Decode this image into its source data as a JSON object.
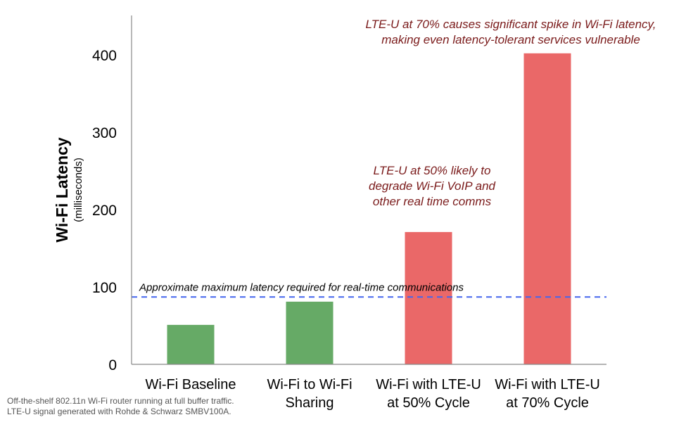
{
  "chart_data": {
    "type": "bar",
    "categories": [
      [
        "Wi-Fi Baseline"
      ],
      [
        "Wi-Fi to Wi-Fi",
        "Sharing"
      ],
      [
        "Wi-Fi with LTE-U",
        "at 50% Cycle"
      ],
      [
        "Wi-Fi with LTE-U",
        "at 70% Cycle"
      ]
    ],
    "values": [
      51,
      81,
      171,
      402
    ],
    "bar_colors": [
      "#66aa66",
      "#66aa66",
      "#ea6868",
      "#ea6868"
    ],
    "ylabel": "Wi-Fi Latency",
    "ylabel_sub": "(milliseconds)",
    "ylim": [
      0,
      450
    ],
    "yticks": [
      0,
      100,
      200,
      300,
      400
    ],
    "threshold": {
      "value": 87,
      "label": "Approximate maximum latency required for real-time communications",
      "color": "#4466ee"
    },
    "annotations": [
      {
        "lines": [
          "LTE-U at 50% likely to",
          "degrade Wi-Fi VoIP and",
          "other real time comms"
        ],
        "anchor_category": 2
      },
      {
        "lines": [
          "LTE-U at 70% causes significant spike in Wi-Fi latency,",
          "making even latency-tolerant services vulnerable"
        ],
        "anchor_category": 3
      }
    ],
    "grid": false
  },
  "footnote": {
    "line1": "Off-the-shelf 802.11n Wi-Fi router running at full buffer traffic.",
    "line2": "LTE-U signal generated with Rohde & Schwarz SMBV100A."
  }
}
